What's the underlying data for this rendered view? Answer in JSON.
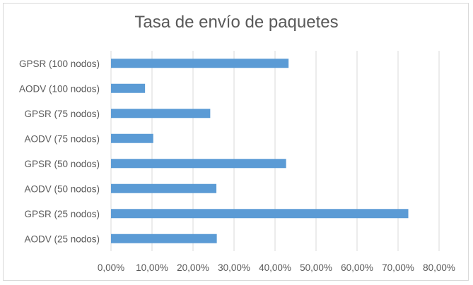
{
  "chart_data": {
    "type": "bar",
    "orientation": "horizontal",
    "title": "Tasa de envío de paquetes",
    "categories": [
      "GPSR (100 nodos)",
      "AODV (100 nodos)",
      "GPSR (75 nodos)",
      "AODV (75 nodos)",
      "GPSR (50 nodos)",
      "AODV (50 nodos)",
      "GPSR (25 nodos)",
      "AODV (25 nodos)"
    ],
    "values": [
      0.433,
      0.083,
      0.242,
      0.103,
      0.427,
      0.257,
      0.725,
      0.258
    ],
    "xlim": [
      0,
      0.8
    ],
    "xticks": [
      0,
      0.1,
      0.2,
      0.3,
      0.4,
      0.5,
      0.6,
      0.7,
      0.8
    ],
    "xtick_labels": [
      "0,00%",
      "10,00%",
      "20,00%",
      "30,00%",
      "40,00%",
      "50,00%",
      "60,00%",
      "70,00%",
      "80,00%"
    ],
    "xlabel": "",
    "ylabel": "",
    "grid": true,
    "legend": "none",
    "colors": {
      "bar": "#5b9bd5",
      "grid": "#d9d9d9",
      "text": "#595959"
    }
  }
}
